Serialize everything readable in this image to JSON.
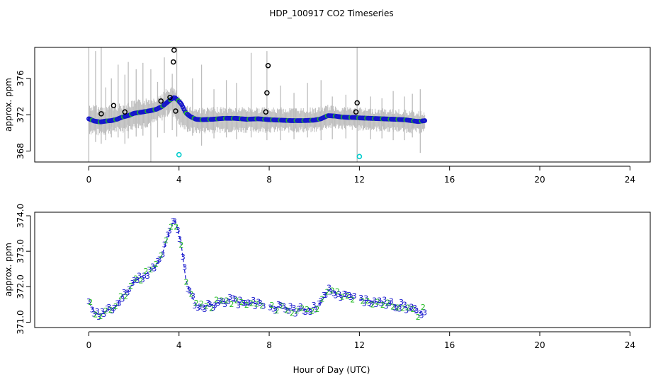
{
  "chart_data": {
    "title": "HDP_100917  CO2 Timeseries",
    "xlabel": "Hour of Day (UTC)",
    "xlim": [
      -2.4,
      24.9
    ],
    "panels": [
      {
        "id": "top",
        "type": "scatter",
        "ylabel": "approx. ppm",
        "ylim": [
          366.8,
          379.4
        ],
        "xticks": [
          0,
          4,
          8,
          12,
          16,
          20,
          24
        ],
        "xtick_labels": [
          "0",
          "4",
          "8",
          "12",
          "16",
          "20",
          "24"
        ],
        "yticks": [
          368,
          372,
          376
        ],
        "ytick_labels": [
          "368",
          "372",
          "376"
        ],
        "raw_band": {
          "name": "raw samples (grey)",
          "color": "#bdbdbd",
          "x": [
            0,
            0.5,
            1,
            1.5,
            2,
            2.5,
            3,
            3.3,
            3.6,
            3.8,
            4.0,
            4.3,
            4.6,
            5,
            6,
            7,
            8,
            9,
            10,
            10.6,
            11,
            12,
            13,
            14,
            14.6,
            14.9
          ],
          "low": [
            369.8,
            369.6,
            369.9,
            370.0,
            370.3,
            370.5,
            370.9,
            371.4,
            372.0,
            371.6,
            370.6,
            370.1,
            369.9,
            369.9,
            370.0,
            370.0,
            370.0,
            370.0,
            370.0,
            370.4,
            370.4,
            370.2,
            370.1,
            370.0,
            369.9,
            370.0
          ],
          "high": [
            373.2,
            373.0,
            373.1,
            373.3,
            373.6,
            373.8,
            374.2,
            374.6,
            375.2,
            375.0,
            374.0,
            373.2,
            372.9,
            372.8,
            372.9,
            372.9,
            372.8,
            372.8,
            372.8,
            373.1,
            373.0,
            372.8,
            372.7,
            372.6,
            372.4,
            372.4
          ],
          "spikes_x": [
            0.0,
            0.3,
            0.55,
            0.75,
            1.0,
            1.3,
            1.6,
            1.75,
            2.1,
            2.4,
            2.75,
            3.05,
            3.35,
            3.7,
            3.9,
            4.6,
            5.0,
            5.55,
            6.1,
            6.55,
            7.2,
            7.9,
            8.5,
            9.1,
            9.7,
            10.3,
            10.8,
            11.4,
            11.9,
            12.5,
            13.0,
            13.5,
            14.0,
            14.35,
            14.7
          ],
          "spikes_low": [
            366.8,
            369.0,
            368.8,
            369.2,
            369.5,
            369.5,
            368.8,
            369.4,
            369.6,
            369.7,
            366.8,
            369.5,
            370.0,
            370.3,
            369.6,
            369.7,
            368.6,
            369.4,
            369.5,
            369.3,
            369.5,
            369.2,
            369.2,
            369.3,
            369.5,
            369.2,
            369.3,
            369.4,
            366.8,
            369.3,
            369.4,
            369.2,
            369.2,
            369.5,
            367.8
          ],
          "spikes_high": [
            379.4,
            379.0,
            379.4,
            375.0,
            376.0,
            377.5,
            376.4,
            377.8,
            377.0,
            377.7,
            377.0,
            375.6,
            378.3,
            376.5,
            379.4,
            376.0,
            377.5,
            374.8,
            375.8,
            375.5,
            378.8,
            379.0,
            375.2,
            374.4,
            375.5,
            375.8,
            374.0,
            374.2,
            379.4,
            374.0,
            373.8,
            374.6,
            374.0,
            374.3,
            374.8
          ]
        },
        "outliers": {
          "name": "flagged high points (black)",
          "color": "#000000",
          "x": [
            0.55,
            1.1,
            1.6,
            3.2,
            3.6,
            3.75,
            3.78,
            3.85,
            7.85,
            7.9,
            7.95,
            11.85,
            11.9
          ],
          "y": [
            372.1,
            373.0,
            372.3,
            373.5,
            373.9,
            377.8,
            379.1,
            372.4,
            372.3,
            374.4,
            377.4,
            372.3,
            373.3
          ]
        },
        "low_outliers": {
          "name": "flagged low points (cyan)",
          "color": "#00cccc",
          "x": [
            4.0,
            12.0
          ],
          "y": [
            367.6,
            367.4
          ]
        }
      },
      {
        "id": "bottom",
        "type": "line",
        "ylabel": "approx. ppm",
        "ylim": [
          370.85,
          374.1
        ],
        "xticks": [
          0,
          4,
          8,
          12,
          16,
          20,
          24
        ],
        "xtick_labels": [
          "0",
          "4",
          "8",
          "12",
          "16",
          "20",
          "24"
        ],
        "yticks": [
          371.0,
          372.0,
          373.0,
          374.0
        ],
        "ytick_labels": [
          "371.0",
          "372.0",
          "373.0",
          "374.0"
        ],
        "series_2": {
          "name": "series 2 (green)",
          "color": "#22bb22",
          "marker": "2"
        },
        "series_3": {
          "name": "series 3 (blue)",
          "color": "#1515cc",
          "marker": "3"
        },
        "x": [
          0.0,
          0.25,
          0.5,
          0.75,
          1.0,
          1.25,
          1.5,
          1.75,
          2.0,
          2.25,
          2.5,
          2.75,
          3.0,
          3.25,
          3.5,
          3.65,
          3.8,
          3.95,
          4.1,
          4.3,
          4.5,
          4.75,
          5.0,
          5.5,
          6.0,
          6.5,
          7.0,
          7.5,
          7.8,
          8.0,
          8.5,
          9.0,
          9.5,
          10.0,
          10.3,
          10.6,
          10.9,
          11.2,
          11.5,
          11.8,
          12.0,
          12.5,
          13.0,
          13.5,
          14.0,
          14.3,
          14.6,
          14.9
        ],
        "y": [
          371.55,
          371.3,
          371.2,
          371.3,
          371.35,
          371.5,
          371.75,
          371.9,
          372.15,
          372.25,
          372.35,
          372.45,
          372.6,
          372.9,
          373.4,
          373.7,
          373.9,
          373.6,
          373.2,
          372.2,
          371.8,
          371.5,
          371.45,
          371.5,
          371.6,
          371.6,
          371.5,
          371.55,
          371.5,
          371.45,
          371.4,
          371.35,
          371.35,
          371.4,
          371.55,
          371.9,
          371.85,
          371.75,
          371.7,
          371.7,
          371.65,
          371.6,
          371.55,
          371.5,
          371.45,
          371.35,
          371.25,
          371.35
        ]
      }
    ]
  }
}
